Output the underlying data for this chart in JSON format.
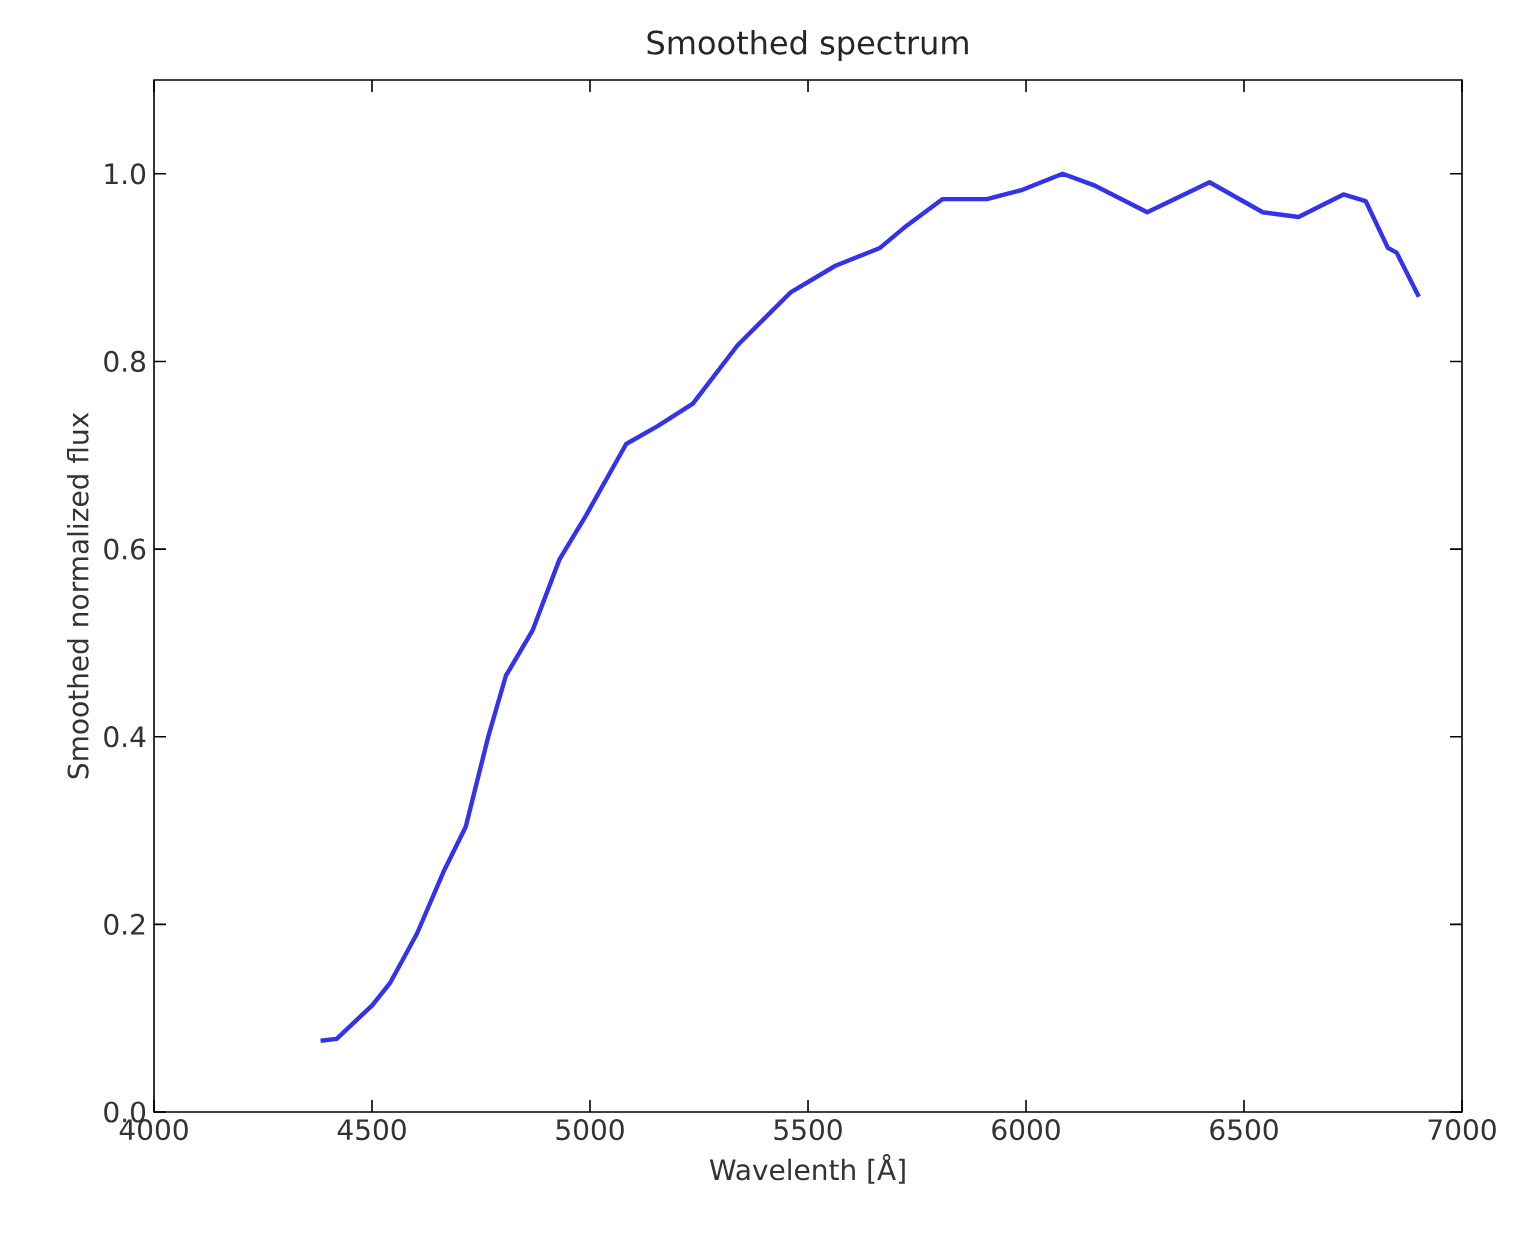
{
  "chart_data": {
    "type": "line",
    "title": "Smoothed spectrum",
    "xlabel": "Wavelenth [Å]",
    "ylabel": "Smoothed normalized flux",
    "xlim": [
      4000,
      7000
    ],
    "ylim": [
      0,
      1.1
    ],
    "xticks": [
      4000,
      4500,
      5000,
      5500,
      6000,
      6500,
      7000
    ],
    "yticks": [
      {
        "value": 0,
        "label": "0.0"
      },
      {
        "value": 0.2,
        "label": "0.2"
      },
      {
        "value": 0.4,
        "label": "0.4"
      },
      {
        "value": 0.6,
        "label": "0.6"
      },
      {
        "value": 0.8,
        "label": "0.8"
      },
      {
        "value": 1.0,
        "label": "1.0"
      }
    ],
    "grid": false,
    "series": [
      {
        "color": "#3333ee",
        "x": [
          4382,
          4419,
          4501,
          4542,
          4603,
          4664,
          4715,
          4766,
          4807,
          4868,
          4930,
          4991,
          5083,
          5155,
          5236,
          5338,
          5461,
          5563,
          5665,
          5727,
          5808,
          5910,
          5992,
          6084,
          6155,
          6278,
          6421,
          6543,
          6625,
          6728,
          6779,
          6830,
          6850,
          6901
        ],
        "values": [
          0.076,
          0.078,
          0.114,
          0.138,
          0.19,
          0.256,
          0.304,
          0.399,
          0.465,
          0.513,
          0.589,
          0.636,
          0.712,
          0.731,
          0.755,
          0.817,
          0.874,
          0.902,
          0.921,
          0.945,
          0.973,
          0.973,
          0.983,
          1.0,
          0.988,
          0.959,
          0.991,
          0.959,
          0.954,
          0.978,
          0.971,
          0.921,
          0.916,
          0.869
        ]
      }
    ]
  }
}
